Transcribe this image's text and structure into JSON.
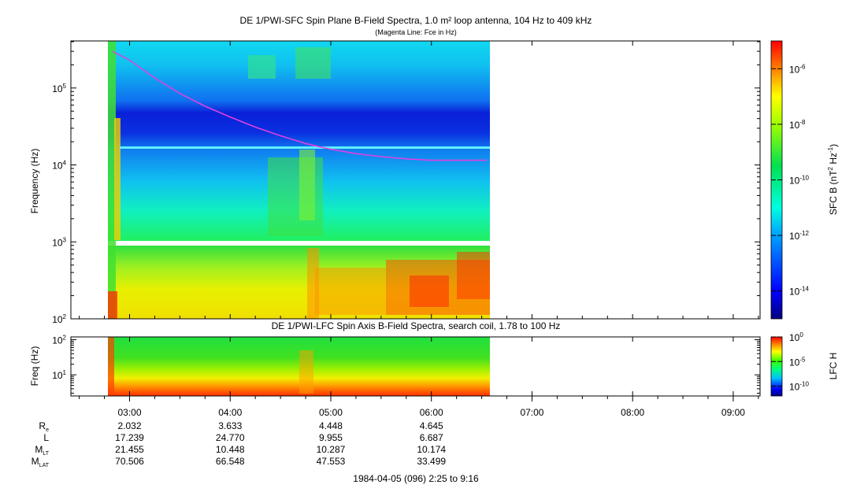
{
  "chart_data": [
    {
      "type": "heatmap",
      "title": "DE 1/PWI-SFC  Spin Plane B-Field Spectra, 1.0 m² loop antenna, 104 Hz to 409 kHz",
      "subtitle": "(Magenta Line: Fce in Hz)",
      "ylabel": "Frequency (Hz)",
      "yscale": "log",
      "ylim": [
        100,
        409000
      ],
      "yticks": [
        {
          "base": "10",
          "exp": "2"
        },
        {
          "base": "10",
          "exp": "3"
        },
        {
          "base": "10",
          "exp": "4"
        },
        {
          "base": "10",
          "exp": "5"
        }
      ],
      "data_time_range_hours": [
        2.8,
        6.58
      ],
      "data_gap_hz": [
        900,
        1000
      ],
      "colorbar": {
        "label_main": "SFC B (nT",
        "label_exp1": "2",
        "label_mid": " Hz",
        "label_exp2": "-1",
        "label_end": ")",
        "scale": "log",
        "range": [
          1e-15,
          1e-05
        ],
        "ticks": [
          {
            "base": "10",
            "exp": "-6"
          },
          {
            "base": "10",
            "exp": "-8"
          },
          {
            "base": "10",
            "exp": "-10"
          },
          {
            "base": "10",
            "exp": "-12"
          },
          {
            "base": "10",
            "exp": "-14"
          }
        ]
      },
      "fce_line": {
        "name": "Fce in Hz",
        "color": "#e040e0",
        "t": [
          2.83,
          3.0,
          3.25,
          3.5,
          3.75,
          4.0,
          4.25,
          4.5,
          4.75,
          5.0,
          5.25,
          5.5,
          5.75,
          6.0,
          6.25,
          6.55
        ],
        "f": [
          300000,
          230000,
          135000,
          85000,
          58000,
          42000,
          31000,
          24000,
          19000,
          16000,
          14000,
          12800,
          12000,
          11500,
          11500,
          11500
        ]
      }
    },
    {
      "type": "heatmap",
      "title": "DE 1/PWI-LFC  Spin Axis B-Field Spectra, search coil, 1.78 to 100 Hz",
      "ylabel": "Freq (Hz)",
      "yscale": "log",
      "ylim": [
        2.5,
        120
      ],
      "yticks": [
        {
          "base": "10",
          "exp": "1"
        },
        {
          "base": "10",
          "exp": "2"
        }
      ],
      "data_time_range_hours": [
        2.8,
        6.58
      ],
      "colorbar": {
        "label": "LFC H",
        "scale": "log",
        "range": [
          1e-12,
          1
        ],
        "ticks": [
          {
            "base": "10",
            "exp": "0"
          },
          {
            "base": "10",
            "exp": "-5"
          },
          {
            "base": "10",
            "exp": "-10"
          }
        ]
      }
    }
  ],
  "x_axis": {
    "tick_labels": [
      "03:00",
      "04:00",
      "05:00",
      "06:00",
      "07:00",
      "08:00",
      "09:00"
    ],
    "range_hours": [
      2.4167,
      9.2667
    ],
    "footer": "1984-04-05 (096) 2:25 to 9:16"
  },
  "ephemeris": {
    "rows": [
      {
        "label": "R",
        "sub": "e",
        "values": [
          "2.032",
          "3.633",
          "4.448",
          "4.645"
        ]
      },
      {
        "label": "L",
        "sub": "",
        "values": [
          "17.239",
          "24.770",
          "9.955",
          "6.687"
        ]
      },
      {
        "label": "M",
        "sub": "LT",
        "values": [
          "21.455",
          "10.448",
          "10.287",
          "10.174"
        ]
      },
      {
        "label": "M",
        "sub": "LAT",
        "values": [
          "70.506",
          "66.548",
          "47.553",
          "33.499"
        ]
      }
    ]
  }
}
